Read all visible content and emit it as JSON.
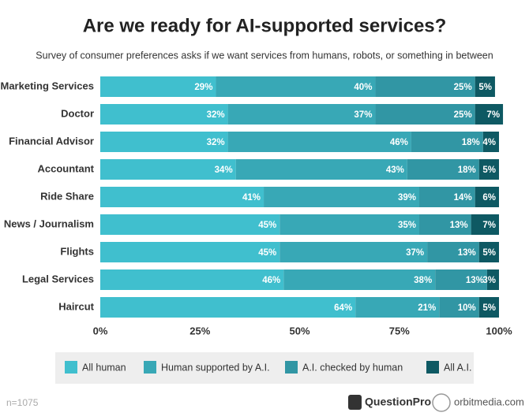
{
  "chart_data": {
    "type": "stacked-bar-horizontal",
    "title": "Are we ready for AI-supported services?",
    "subtitle": "Survey of consumer preferences asks if we want services from humans, robots, or something in between",
    "note": "n=1075",
    "categories": [
      "Marketing Services",
      "Doctor",
      "Financial Advisor",
      "Accountant",
      "Ride Share",
      "News / Journalism",
      "Flights",
      "Legal Services",
      "Haircut"
    ],
    "series": [
      {
        "name": "All human",
        "color": "#40bfce",
        "values": [
          29,
          32,
          32,
          34,
          41,
          45,
          45,
          46,
          64
        ],
        "value_labels": [
          "29%",
          "32%",
          "32%",
          "34%",
          "41%",
          "45%",
          "45%",
          "46%",
          "64%"
        ]
      },
      {
        "name": "Human supported by A.I.",
        "color": "#38a8b6",
        "values": [
          40,
          37,
          46,
          43,
          39,
          35,
          37,
          38,
          21
        ],
        "value_labels": [
          "40%",
          "37%",
          "46%",
          "43%",
          "39%",
          "35%",
          "37%",
          "38%",
          "21%"
        ]
      },
      {
        "name": "A.I. checked by human",
        "color": "#3196a4",
        "values": [
          25,
          25,
          18,
          18,
          14,
          13,
          13,
          13,
          10
        ],
        "value_labels": [
          "25%",
          "25%",
          "18%",
          "18%",
          "14%",
          "13%",
          "13%",
          "13%",
          "10%"
        ]
      },
      {
        "name": "All A.I.",
        "color": "#0e5963",
        "values": [
          5,
          7,
          4,
          5,
          6,
          7,
          5,
          3,
          5
        ],
        "value_labels": [
          "5%",
          "7%",
          "4%",
          "5%",
          "6%",
          "7%",
          "5%",
          "3%",
          "5%"
        ]
      }
    ],
    "xlim": [
      0,
      100
    ],
    "xticks": [
      {
        "value": 0,
        "label": "0%"
      },
      {
        "value": 25,
        "label": "25%"
      },
      {
        "value": 50,
        "label": "50%"
      },
      {
        "value": 75,
        "label": "75%"
      },
      {
        "value": 100,
        "label": "100%"
      }
    ],
    "legend": "bottom"
  },
  "footer": {
    "logos": [
      "QuestionPro",
      "orbitmedia.com"
    ]
  }
}
